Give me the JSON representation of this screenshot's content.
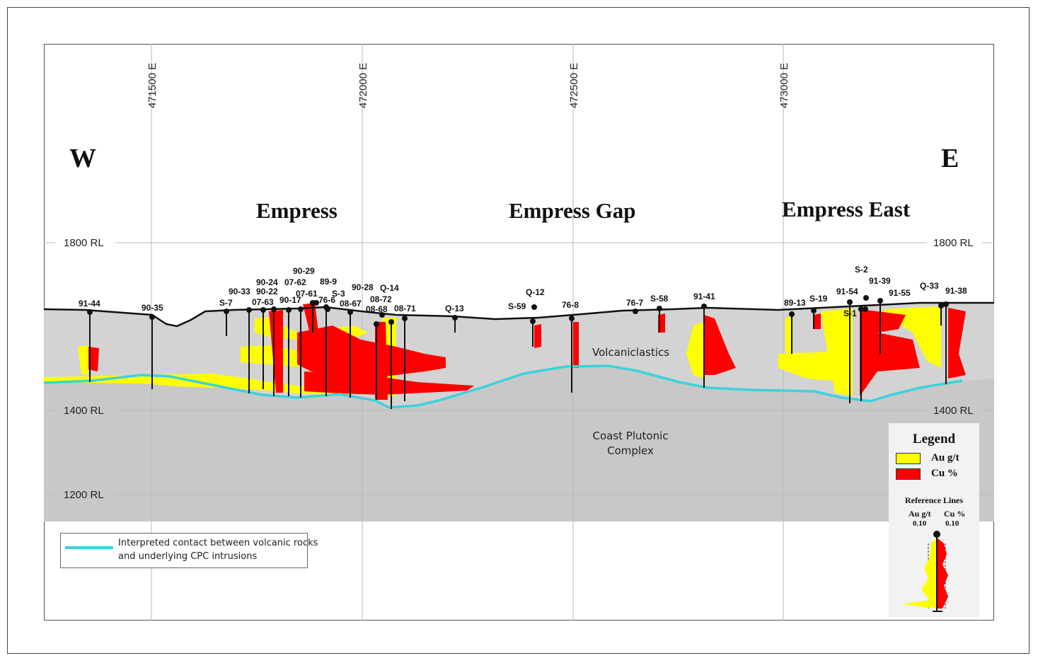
{
  "compass": {
    "west": "W",
    "east": "E"
  },
  "zones": [
    {
      "id": "empress",
      "label": "Empress"
    },
    {
      "id": "empress-gap",
      "label": "Empress Gap"
    },
    {
      "id": "empress-east",
      "label": "Empress East"
    }
  ],
  "eastings": [
    "471500 E",
    "472000 E",
    "472500 E",
    "473000 E"
  ],
  "elevations": {
    "rl1800": "1800 RL",
    "rl1400": "1400 RL",
    "rl1200": "1200 RL"
  },
  "units": {
    "volcaniclastics": "Volcaniclastics",
    "cpc_line1": "Coast Plutonic",
    "cpc_line2": "Complex"
  },
  "drillholes": [
    {
      "id": "91-44"
    },
    {
      "id": "90-35"
    },
    {
      "id": "S-7"
    },
    {
      "id": "90-33"
    },
    {
      "id": "07-63"
    },
    {
      "id": "90-24"
    },
    {
      "id": "90-22"
    },
    {
      "id": "90-17"
    },
    {
      "id": "07-62"
    },
    {
      "id": "90-29"
    },
    {
      "id": "07-61"
    },
    {
      "id": "76-6"
    },
    {
      "id": "89-9"
    },
    {
      "id": "S-3"
    },
    {
      "id": "08-67"
    },
    {
      "id": "90-28"
    },
    {
      "id": "08-68"
    },
    {
      "id": "08-72"
    },
    {
      "id": "Q-14"
    },
    {
      "id": "08-71"
    },
    {
      "id": "Q-13"
    },
    {
      "id": "S-59"
    },
    {
      "id": "Q-12"
    },
    {
      "id": "76-8"
    },
    {
      "id": "76-7"
    },
    {
      "id": "S-58"
    },
    {
      "id": "91-41"
    },
    {
      "id": "89-13"
    },
    {
      "id": "S-19"
    },
    {
      "id": "91-54"
    },
    {
      "id": "S-1"
    },
    {
      "id": "S-2"
    },
    {
      "id": "91-39"
    },
    {
      "id": "91-55"
    },
    {
      "id": "Q-33"
    },
    {
      "id": "91-38"
    }
  ],
  "legend": {
    "title": "Legend",
    "au_label": "Au g/t",
    "cu_label": "Cu %",
    "au_color": "#ffff00",
    "cu_color": "#ff0000",
    "ref_title": "Reference Lines",
    "ref_au_label": "Au g/t",
    "ref_cu_label": "Cu %",
    "ref_au_value": "0.10",
    "ref_cu_value": "0.10"
  },
  "contact_legend": {
    "line1": "Interpreted contact between volcanic rocks",
    "line2": "and underlying CPC intrusions",
    "color": "#3cd2dc"
  }
}
